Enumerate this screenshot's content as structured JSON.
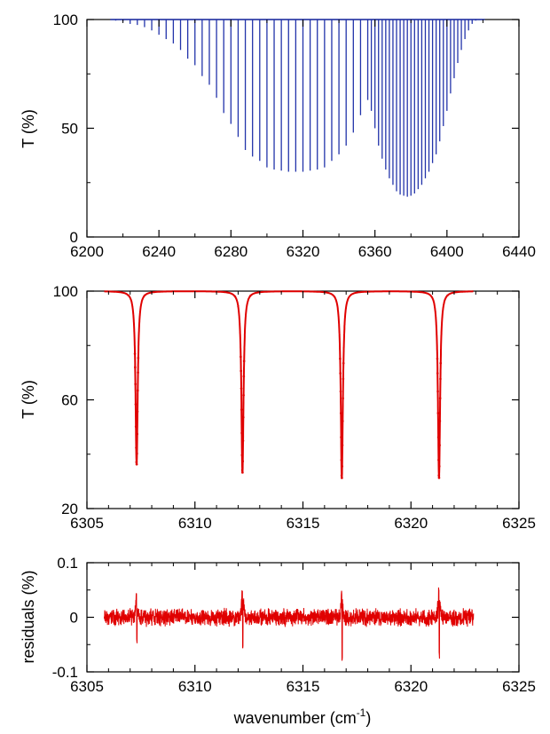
{
  "chart_data": [
    {
      "id": "p1",
      "type": "line",
      "style": "stick-spectrum",
      "ylabel": "T (%)",
      "xlabel": "",
      "xlim": [
        6200,
        6440
      ],
      "ylim": [
        0,
        100
      ],
      "xticks": [
        6200,
        6240,
        6280,
        6320,
        6360,
        6400,
        6440
      ],
      "yticks": [
        0,
        50,
        100
      ],
      "grid": false,
      "color": "#2233aa",
      "baseline_range": [
        6213,
        6421
      ],
      "series": [
        {
          "x": [
            6216,
            6220,
            6224,
            6228,
            6232,
            6236,
            6240,
            6244,
            6248,
            6252,
            6256,
            6260,
            6264,
            6268,
            6272,
            6276,
            6280,
            6284,
            6288,
            6292,
            6296,
            6300,
            6304,
            6308,
            6312,
            6316,
            6320,
            6324,
            6328,
            6332,
            6336,
            6340,
            6344,
            6348,
            6352,
            6356,
            6358,
            6360,
            6362,
            6364,
            6366,
            6368,
            6370,
            6372,
            6374,
            6376,
            6378,
            6380,
            6382,
            6384,
            6386,
            6388,
            6390,
            6392,
            6394,
            6396,
            6398,
            6400,
            6402,
            6404,
            6406,
            6408,
            6410,
            6412,
            6414,
            6416
          ],
          "values": [
            99.5,
            99,
            98,
            97.5,
            96.5,
            95,
            93,
            91,
            89,
            86,
            82,
            79,
            74,
            70,
            64,
            57,
            52,
            46,
            40,
            37,
            35,
            32,
            31,
            30.5,
            30,
            30,
            30,
            30.5,
            31,
            32,
            35,
            38,
            42,
            48,
            56,
            63,
            58,
            50,
            42,
            36,
            31,
            27,
            24,
            21,
            19.5,
            19,
            18.5,
            19,
            20,
            22,
            24,
            27,
            30,
            34,
            38,
            44,
            51,
            58,
            66,
            73,
            80,
            86,
            91,
            95,
            98,
            99.5
          ]
        }
      ]
    },
    {
      "id": "p2",
      "type": "line",
      "ylabel": "T (%)",
      "xlabel": "",
      "xlim": [
        6305,
        6325
      ],
      "ylim": [
        20,
        100
      ],
      "xticks": [
        6305,
        6310,
        6315,
        6320,
        6325
      ],
      "yticks": [
        20,
        60,
        100
      ],
      "grid": false,
      "color": "#e00000",
      "data_range": [
        6305.8,
        6322.9
      ],
      "lines": [
        {
          "center": 6307.3,
          "min": 36
        },
        {
          "center": 6312.2,
          "min": 33
        },
        {
          "center": 6316.8,
          "min": 31
        },
        {
          "center": 6321.3,
          "min": 31
        }
      ],
      "line_halfwidth": 0.06
    },
    {
      "id": "p3",
      "type": "line",
      "ylabel": "residuals (%)",
      "xlabel": "wavenumber (cm",
      "xlabel_sup": "-1",
      "xlabel_end": ")",
      "xlim": [
        6305,
        6325
      ],
      "ylim": [
        -0.1,
        0.1
      ],
      "xticks": [
        6305,
        6310,
        6315,
        6320,
        6325
      ],
      "ytick_labels": [
        "0.1",
        "0",
        "-0.1"
      ],
      "yticks": [
        0.1,
        0,
        -0.1
      ],
      "grid": false,
      "color": "#e00000",
      "data_range": [
        6305.8,
        6322.9
      ],
      "noise_amplitude": 0.012,
      "features": [
        {
          "center": 6307.3,
          "up": 0.045,
          "down": -0.055
        },
        {
          "center": 6312.2,
          "up": 0.06,
          "down": -0.065
        },
        {
          "center": 6316.8,
          "up": 0.05,
          "down": -0.08
        },
        {
          "center": 6321.3,
          "up": 0.06,
          "down": -0.085
        }
      ]
    }
  ]
}
